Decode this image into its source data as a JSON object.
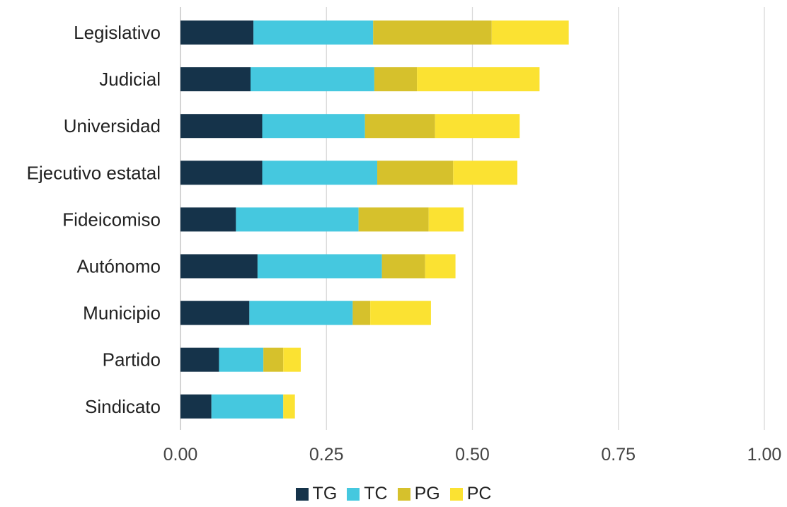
{
  "chart_data": {
    "type": "bar",
    "orientation": "horizontal",
    "stacked": true,
    "categories": [
      "Legislativo",
      "Judicial",
      "Universidad",
      "Ejecutivo estatal",
      "Fideicomiso",
      "Autónomo",
      "Municipio",
      "Partido",
      "Sindicato"
    ],
    "series": [
      {
        "name": "TG",
        "color": "#15334a",
        "values": [
          0.125,
          0.12,
          0.14,
          0.14,
          0.095,
          0.132,
          0.118,
          0.066,
          0.053
        ]
      },
      {
        "name": "TC",
        "color": "#45c8df",
        "values": [
          0.205,
          0.212,
          0.176,
          0.197,
          0.21,
          0.213,
          0.177,
          0.076,
          0.123
        ]
      },
      {
        "name": "PG",
        "color": "#d6c12c",
        "values": [
          0.203,
          0.073,
          0.12,
          0.13,
          0.12,
          0.074,
          0.03,
          0.034,
          0.0
        ]
      },
      {
        "name": "PC",
        "color": "#fbe232",
        "values": [
          0.132,
          0.21,
          0.145,
          0.11,
          0.06,
          0.052,
          0.104,
          0.03,
          0.02
        ]
      }
    ],
    "xlim": [
      0,
      1
    ],
    "xticks": [
      "0.00",
      "0.25",
      "0.50",
      "0.75",
      "1.00"
    ],
    "xtick_values": [
      0,
      0.25,
      0.5,
      0.75,
      1
    ],
    "grid": "vertical",
    "legend_position": "bottom",
    "title": "",
    "xlabel": "",
    "ylabel": ""
  }
}
